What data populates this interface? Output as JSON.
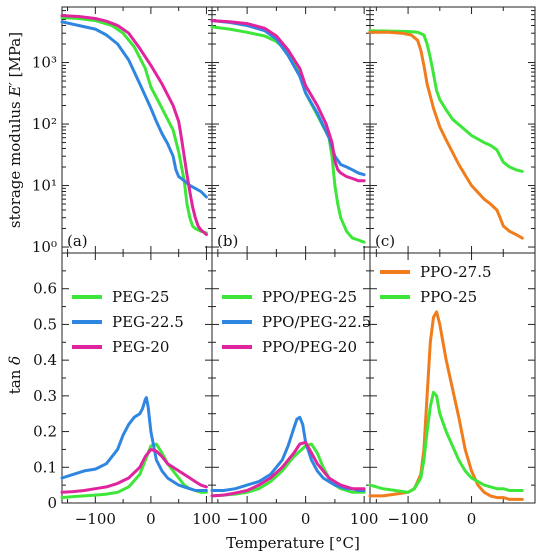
{
  "figure": {
    "ylabel_top_text": "storage modulus ",
    "ylabel_top_symbol": "E′",
    "ylabel_top_unit": " [MPa]",
    "ylabel_bottom_text": "tan ",
    "ylabel_bottom_symbol": "δ",
    "xlabel": "Temperature [°C]"
  },
  "colors": {
    "green": "#3ee63a",
    "blue": "#2f86e0",
    "magenta": "#e0249e",
    "orange": "#f07c1c"
  },
  "chart_data": [
    {
      "type": "line",
      "panel": "a",
      "label": "(a)",
      "scale": "log",
      "xlim": [
        -160,
        110
      ],
      "ylim": [
        0.8,
        8000
      ],
      "yticks": [
        "10⁰",
        "10¹",
        "10²",
        "10³"
      ],
      "series": [
        {
          "color": "green",
          "x": [
            -160,
            -130,
            -100,
            -70,
            -50,
            -30,
            -10,
            0,
            20,
            40,
            50,
            60,
            65,
            70,
            75,
            80,
            85,
            90,
            100
          ],
          "y": [
            5400,
            5200,
            4800,
            4000,
            3000,
            1800,
            800,
            400,
            180,
            80,
            35,
            12,
            5,
            3,
            2.2,
            2.0,
            1.9,
            1.8,
            1.7
          ]
        },
        {
          "color": "blue",
          "x": [
            -160,
            -130,
            -100,
            -80,
            -60,
            -40,
            -20,
            0,
            10,
            20,
            30,
            40,
            45,
            50,
            60,
            70,
            80,
            90,
            100
          ],
          "y": [
            4600,
            4000,
            3500,
            2800,
            2000,
            1100,
            450,
            180,
            110,
            70,
            48,
            30,
            18,
            14,
            12,
            10,
            9,
            8,
            6.5
          ]
        },
        {
          "color": "magenta",
          "x": [
            -160,
            -130,
            -100,
            -80,
            -60,
            -40,
            -20,
            0,
            20,
            40,
            50,
            55,
            60,
            65,
            70,
            75,
            80,
            85,
            90,
            100
          ],
          "y": [
            5800,
            5600,
            5200,
            4700,
            4000,
            3000,
            1700,
            900,
            450,
            200,
            110,
            60,
            30,
            15,
            8,
            4.5,
            3,
            2.2,
            1.9,
            1.6
          ]
        }
      ]
    },
    {
      "type": "line",
      "panel": "b",
      "label": "(b)",
      "scale": "log",
      "xlim": [
        -160,
        110
      ],
      "ylim": [
        0.8,
        8000
      ],
      "series": [
        {
          "color": "green",
          "x": [
            -160,
            -130,
            -100,
            -70,
            -50,
            -30,
            -10,
            0,
            20,
            40,
            45,
            50,
            55,
            60,
            70,
            80,
            90,
            100
          ],
          "y": [
            3800,
            3500,
            3100,
            2700,
            2200,
            1500,
            650,
            320,
            140,
            60,
            30,
            10,
            5,
            3,
            1.8,
            1.4,
            1.3,
            1.2
          ]
        },
        {
          "color": "blue",
          "x": [
            -160,
            -130,
            -100,
            -70,
            -50,
            -30,
            -10,
            0,
            20,
            40,
            50,
            60,
            70,
            80,
            90,
            100
          ],
          "y": [
            4800,
            4500,
            4000,
            3300,
            2400,
            1300,
            600,
            320,
            150,
            60,
            30,
            22,
            20,
            18,
            16,
            15
          ]
        },
        {
          "color": "magenta",
          "x": [
            -160,
            -130,
            -100,
            -70,
            -50,
            -30,
            -10,
            0,
            20,
            35,
            45,
            50,
            55,
            60,
            70,
            80,
            90,
            100
          ],
          "y": [
            4800,
            4600,
            4300,
            3600,
            2700,
            1600,
            800,
            420,
            200,
            100,
            50,
            25,
            18,
            16,
            14,
            13,
            12,
            12
          ]
        }
      ]
    },
    {
      "type": "line",
      "panel": "c",
      "label": "(c)",
      "scale": "log",
      "xlim": [
        -160,
        100
      ],
      "ylim": [
        0.8,
        8000
      ],
      "series": [
        {
          "color": "green",
          "x": [
            -160,
            -130,
            -100,
            -85,
            -75,
            -70,
            -65,
            -60,
            -55,
            -50,
            -40,
            -30,
            -10,
            0,
            20,
            30,
            40,
            50,
            60,
            70,
            80
          ],
          "y": [
            3300,
            3250,
            3200,
            3100,
            2800,
            2000,
            1200,
            650,
            350,
            250,
            170,
            120,
            80,
            65,
            50,
            45,
            38,
            24,
            20,
            18,
            17
          ]
        },
        {
          "color": "orange",
          "x": [
            -160,
            -130,
            -110,
            -95,
            -85,
            -80,
            -75,
            -70,
            -60,
            -50,
            -40,
            -20,
            0,
            20,
            30,
            40,
            45,
            50,
            60,
            70,
            80
          ],
          "y": [
            3100,
            3100,
            3000,
            2800,
            2300,
            1600,
            900,
            450,
            180,
            90,
            55,
            22,
            10,
            6,
            5,
            4,
            3,
            2.2,
            1.8,
            1.6,
            1.4
          ]
        }
      ]
    },
    {
      "type": "line",
      "panel": "d",
      "scale": "linear",
      "xlim": [
        -160,
        110
      ],
      "ylim": [
        0,
        0.7
      ],
      "xticks": [
        -100,
        0,
        100
      ],
      "yticks": [
        "0",
        "0.1",
        "0.2",
        "0.3",
        "0.4",
        "0.5",
        "0.6"
      ],
      "series": [
        {
          "name": "PEG-25",
          "color": "green",
          "x": [
            -160,
            -140,
            -120,
            -100,
            -80,
            -60,
            -40,
            -20,
            -10,
            0,
            10,
            20,
            30,
            40,
            50,
            60,
            70,
            80,
            90,
            100
          ],
          "y": [
            0.015,
            0.018,
            0.02,
            0.022,
            0.025,
            0.03,
            0.045,
            0.08,
            0.12,
            0.16,
            0.165,
            0.14,
            0.11,
            0.09,
            0.07,
            0.05,
            0.04,
            0.035,
            0.03,
            0.03
          ]
        },
        {
          "name": "PEG-22.5",
          "color": "blue",
          "x": [
            -160,
            -140,
            -120,
            -100,
            -80,
            -60,
            -50,
            -40,
            -30,
            -20,
            -15,
            -10,
            -8,
            -5,
            0,
            10,
            20,
            30,
            40,
            50,
            60,
            70,
            80,
            90,
            100
          ],
          "y": [
            0.07,
            0.08,
            0.09,
            0.095,
            0.11,
            0.15,
            0.19,
            0.22,
            0.24,
            0.25,
            0.265,
            0.29,
            0.295,
            0.27,
            0.2,
            0.12,
            0.09,
            0.07,
            0.06,
            0.05,
            0.045,
            0.04,
            0.035,
            0.035,
            0.035
          ]
        },
        {
          "name": "PEG-20",
          "color": "magenta",
          "x": [
            -160,
            -140,
            -120,
            -100,
            -80,
            -60,
            -40,
            -20,
            -10,
            0,
            10,
            20,
            30,
            40,
            50,
            60,
            70,
            80,
            90,
            100
          ],
          "y": [
            0.03,
            0.032,
            0.035,
            0.04,
            0.045,
            0.055,
            0.07,
            0.1,
            0.13,
            0.15,
            0.145,
            0.13,
            0.11,
            0.1,
            0.09,
            0.08,
            0.07,
            0.06,
            0.05,
            0.045
          ]
        }
      ]
    },
    {
      "type": "line",
      "panel": "e",
      "scale": "linear",
      "xlim": [
        -160,
        110
      ],
      "ylim": [
        0,
        0.7
      ],
      "xticks": [
        -100,
        0,
        100
      ],
      "series": [
        {
          "name": "PPO/PEG-25",
          "color": "green",
          "x": [
            -160,
            -140,
            -120,
            -100,
            -80,
            -60,
            -40,
            -20,
            0,
            10,
            20,
            30,
            40,
            50,
            60,
            70,
            80,
            90,
            100
          ],
          "y": [
            0.02,
            0.022,
            0.025,
            0.03,
            0.04,
            0.06,
            0.09,
            0.13,
            0.16,
            0.165,
            0.14,
            0.1,
            0.07,
            0.05,
            0.04,
            0.035,
            0.03,
            0.03,
            0.03
          ]
        },
        {
          "name": "PPO/PEG-22.5",
          "color": "blue",
          "x": [
            -160,
            -140,
            -120,
            -100,
            -80,
            -60,
            -40,
            -30,
            -20,
            -15,
            -10,
            -5,
            0,
            10,
            20,
            30,
            40,
            50,
            60,
            70,
            80,
            90,
            100
          ],
          "y": [
            0.035,
            0.035,
            0.04,
            0.05,
            0.06,
            0.08,
            0.12,
            0.16,
            0.21,
            0.235,
            0.24,
            0.22,
            0.17,
            0.12,
            0.09,
            0.07,
            0.06,
            0.05,
            0.045,
            0.04,
            0.04,
            0.035,
            0.035
          ]
        },
        {
          "name": "PPO/PEG-20",
          "color": "magenta",
          "x": [
            -160,
            -140,
            -120,
            -100,
            -80,
            -60,
            -40,
            -20,
            -10,
            0,
            10,
            20,
            30,
            40,
            50,
            60,
            70,
            80,
            90,
            100
          ],
          "y": [
            0.02,
            0.022,
            0.028,
            0.035,
            0.05,
            0.07,
            0.1,
            0.14,
            0.165,
            0.17,
            0.14,
            0.11,
            0.09,
            0.07,
            0.06,
            0.05,
            0.045,
            0.04,
            0.04,
            0.04
          ]
        }
      ]
    },
    {
      "type": "line",
      "panel": "f",
      "scale": "linear",
      "xlim": [
        -160,
        100
      ],
      "ylim": [
        0,
        0.7
      ],
      "xticks": [
        -100,
        0
      ],
      "series": [
        {
          "name": "PPO-27.5",
          "color": "orange",
          "x": [
            -160,
            -140,
            -120,
            -100,
            -90,
            -80,
            -75,
            -70,
            -65,
            -60,
            -55,
            -50,
            -45,
            -40,
            -30,
            -20,
            -10,
            0,
            10,
            20,
            30,
            40,
            50,
            60,
            70,
            80
          ],
          "y": [
            0.02,
            0.02,
            0.025,
            0.03,
            0.04,
            0.08,
            0.15,
            0.3,
            0.45,
            0.52,
            0.535,
            0.5,
            0.45,
            0.4,
            0.32,
            0.24,
            0.15,
            0.09,
            0.05,
            0.03,
            0.02,
            0.015,
            0.015,
            0.01,
            0.01,
            0.01
          ]
        },
        {
          "name": "PPO-25",
          "color": "green",
          "x": [
            -160,
            -140,
            -120,
            -100,
            -90,
            -80,
            -75,
            -70,
            -65,
            -60,
            -55,
            -50,
            -40,
            -30,
            -20,
            -10,
            0,
            10,
            20,
            30,
            40,
            50,
            60,
            70,
            80
          ],
          "y": [
            0.05,
            0.04,
            0.035,
            0.03,
            0.04,
            0.07,
            0.12,
            0.2,
            0.27,
            0.31,
            0.3,
            0.25,
            0.2,
            0.16,
            0.12,
            0.09,
            0.07,
            0.06,
            0.05,
            0.045,
            0.04,
            0.04,
            0.035,
            0.035,
            0.035
          ]
        }
      ]
    }
  ]
}
